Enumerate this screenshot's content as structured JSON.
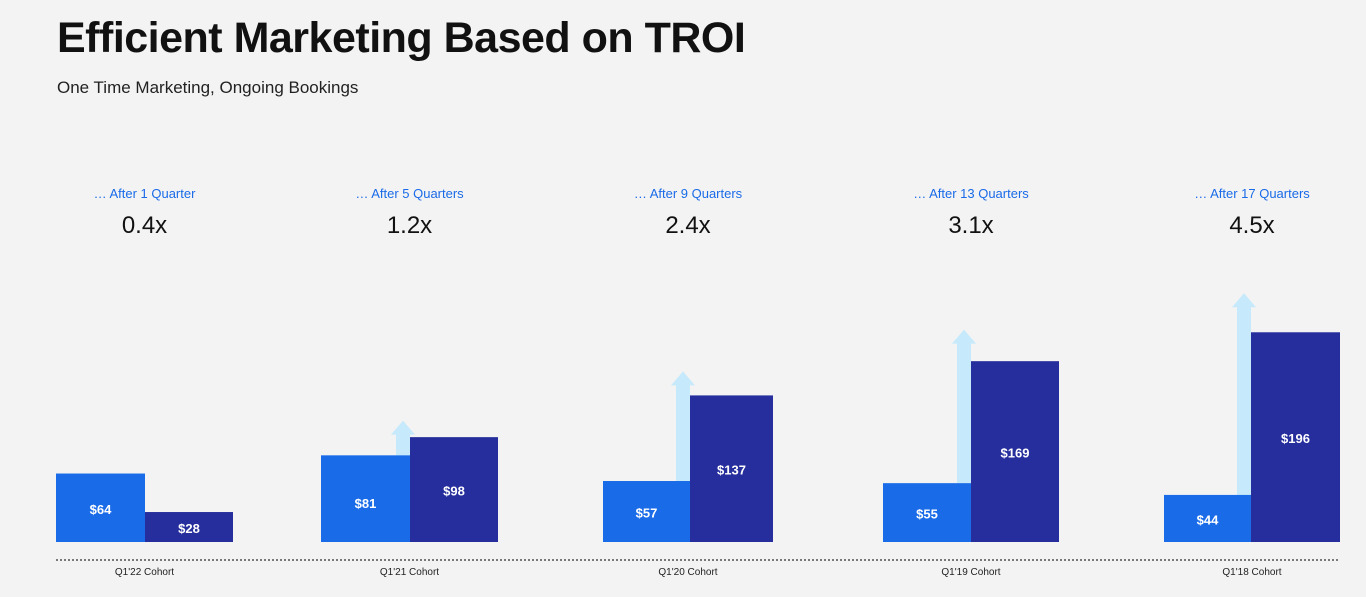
{
  "title": "Efficient Marketing Based on TROI",
  "subtitle": "One Time Marketing, Ongoing Bookings",
  "colors": {
    "marketing": "#1a6be8",
    "bookings": "#252e9c",
    "arrow": "#c6eafb",
    "header": "#1a6be8",
    "multiplier": "#111111",
    "baseline": "#333333"
  },
  "chart_data": {
    "type": "bar",
    "title": "Efficient Marketing Based on TROI",
    "subtitle": "One Time Marketing, Ongoing Bookings",
    "categories": [
      "Q1'22 Cohort",
      "Q1'21 Cohort",
      "Q1'20 Cohort",
      "Q1'19 Cohort",
      "Q1'18 Cohort"
    ],
    "series": [
      {
        "name": "Marketing",
        "values": [
          64,
          81,
          57,
          55,
          44
        ],
        "labels": [
          "$64",
          "$81",
          "$57",
          "$55",
          "$44"
        ]
      },
      {
        "name": "Bookings",
        "values": [
          28,
          98,
          137,
          169,
          196
        ],
        "labels": [
          "$28",
          "$98",
          "$137",
          "$169",
          "$196"
        ]
      }
    ],
    "period_labels": [
      "… After 1 Quarter",
      "… After 5 Quarters",
      "… After 9 Quarters",
      "… After 13 Quarters",
      "… After 17 Quarters"
    ],
    "multipliers": [
      "0.4x",
      "1.2x",
      "2.4x",
      "3.1x",
      "4.5x"
    ],
    "ylim": [
      0,
      200
    ],
    "xlabel": "",
    "ylabel": ""
  }
}
